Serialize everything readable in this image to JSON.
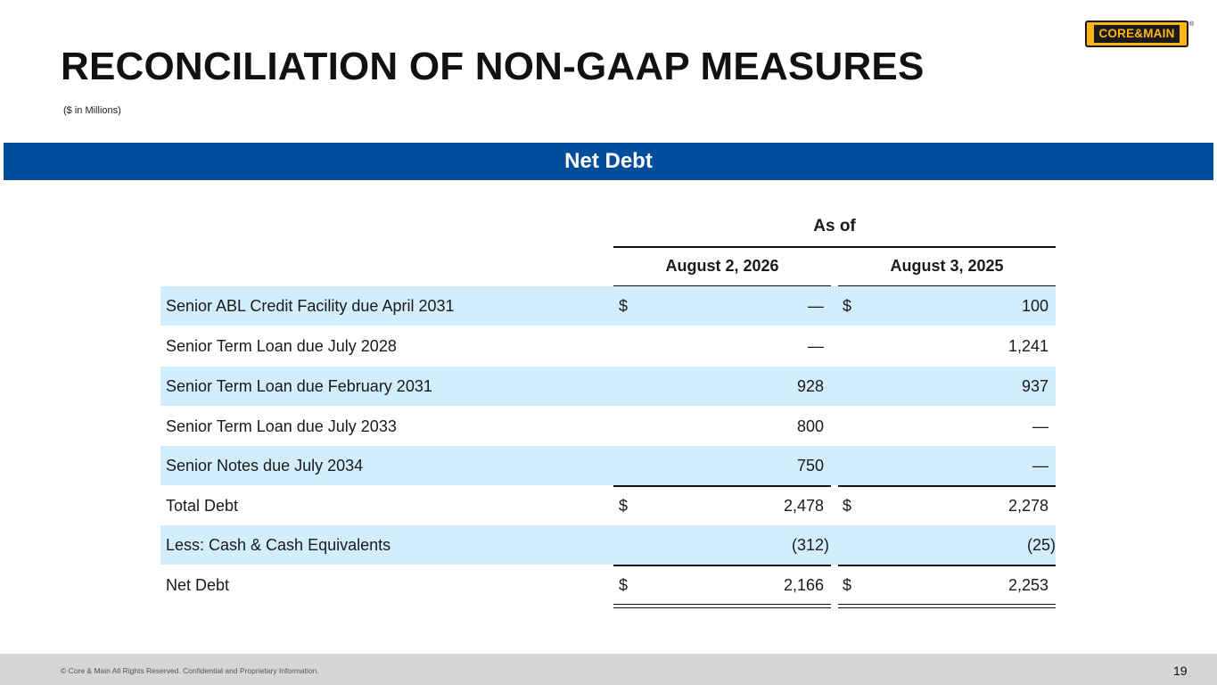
{
  "title": "RECONCILIATION OF NON-GAAP MEASURES",
  "subtitle": "($ in Millions)",
  "logo": {
    "text": "CORE&MAIN",
    "registered": "®"
  },
  "section_band": "Net Debt",
  "table": {
    "group_header": "As of",
    "columns": [
      "August 2, 2026",
      "August 3, 2025"
    ],
    "rows": [
      {
        "label": "Senior ABL Credit Facility due April 2031",
        "cur1": "$",
        "v1": "—",
        "cur2": "$",
        "v2": "100"
      },
      {
        "label": "Senior Term Loan due July 2028",
        "cur1": "",
        "v1": "—",
        "cur2": "",
        "v2": "1,241"
      },
      {
        "label": "Senior Term Loan due February 2031",
        "cur1": "",
        "v1": "928",
        "cur2": "",
        "v2": "937"
      },
      {
        "label": "Senior Term Loan due July 2033",
        "cur1": "",
        "v1": "800",
        "cur2": "",
        "v2": "—"
      },
      {
        "label": "Senior Notes due July 2034",
        "cur1": "",
        "v1": "750",
        "cur2": "",
        "v2": "—"
      },
      {
        "label": "Total Debt",
        "cur1": "$",
        "v1": "2,478",
        "cur2": "$",
        "v2": "2,278"
      },
      {
        "label": "Less: Cash & Cash Equivalents",
        "cur1": "",
        "v1": "(312)",
        "cur2": "",
        "v2": "(25)"
      },
      {
        "label": "Net Debt",
        "cur1": "$",
        "v1": "2,166",
        "cur2": "$",
        "v2": "2,253"
      }
    ]
  },
  "footer": {
    "copyright": "© Core & Main  All Rights Reserved. Confidential and Proprietary Information.",
    "page_number": "19"
  },
  "colors": {
    "band": "#034e9c",
    "row_shade": "#d2edfc",
    "logo_yellow": "#ffb612",
    "footer": "#d6d6d6"
  }
}
